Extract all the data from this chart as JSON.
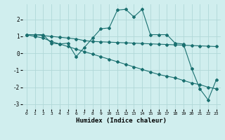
{
  "title": "",
  "xlabel": "Humidex (Indice chaleur)",
  "bg_color": "#d0eeee",
  "grid_color": "#b0d8d8",
  "line_color": "#1a7070",
  "xlim": [
    -0.5,
    23.5
  ],
  "ylim": [
    -3.3,
    2.9
  ],
  "xticks": [
    0,
    1,
    2,
    3,
    4,
    5,
    6,
    7,
    8,
    9,
    10,
    11,
    12,
    13,
    14,
    15,
    16,
    17,
    18,
    19,
    20,
    21,
    22,
    23
  ],
  "yticks": [
    -3,
    -2,
    -1,
    0,
    1,
    2
  ],
  "line1_x": [
    0,
    1,
    2,
    3,
    4,
    5,
    6,
    7,
    8,
    9,
    10,
    11,
    12,
    13,
    14,
    15,
    16,
    17,
    18,
    19,
    20,
    21,
    22,
    23
  ],
  "line1_y": [
    1.1,
    1.1,
    1.1,
    0.6,
    0.55,
    0.6,
    -0.2,
    0.35,
    0.9,
    1.45,
    1.5,
    2.55,
    2.6,
    2.15,
    2.6,
    1.1,
    1.1,
    1.1,
    0.6,
    0.55,
    -0.9,
    -2.1,
    -2.75,
    -1.55
  ],
  "line2_x": [
    0,
    1,
    2,
    3,
    4,
    5,
    6,
    7,
    8,
    9,
    10,
    11,
    12,
    13,
    14,
    15,
    16,
    17,
    18,
    19,
    20,
    21,
    22,
    23
  ],
  "line2_y": [
    1.1,
    1.1,
    1.05,
    1.0,
    0.95,
    0.9,
    0.85,
    0.75,
    0.7,
    0.68,
    0.66,
    0.64,
    0.62,
    0.6,
    0.58,
    0.56,
    0.54,
    0.52,
    0.5,
    0.48,
    0.46,
    0.44,
    0.42,
    0.4
  ],
  "line3_x": [
    0,
    1,
    2,
    3,
    4,
    5,
    6,
    7,
    8,
    9,
    10,
    11,
    12,
    13,
    14,
    15,
    16,
    17,
    18,
    19,
    20,
    21,
    22,
    23
  ],
  "line3_y": [
    1.1,
    1.0,
    0.9,
    0.7,
    0.55,
    0.4,
    0.25,
    0.1,
    -0.05,
    -0.2,
    -0.35,
    -0.5,
    -0.65,
    -0.8,
    -0.95,
    -1.1,
    -1.25,
    -1.35,
    -1.45,
    -1.6,
    -1.75,
    -1.85,
    -2.0,
    -2.1
  ]
}
